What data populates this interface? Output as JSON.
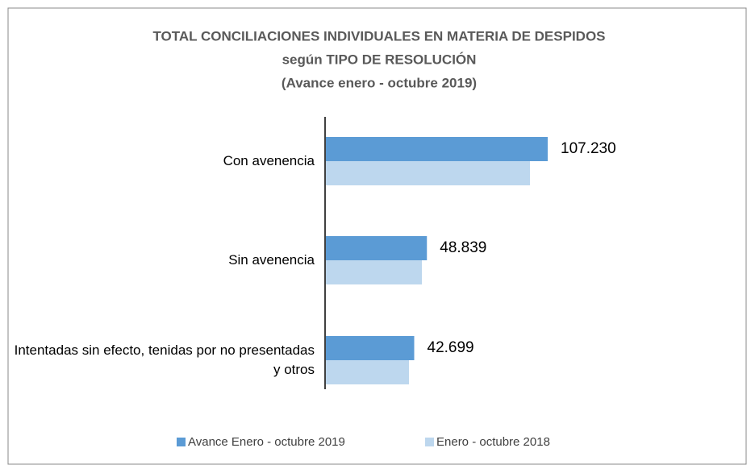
{
  "chart_data": {
    "type": "bar",
    "orientation": "horizontal",
    "title": "TOTAL CONCILIACIONES INDIVIDUALES EN MATERIA DE DESPIDOS",
    "subtitle": "según TIPO DE RESOLUCIÓN",
    "annotation": "(Avance enero - octubre 2019)",
    "categories": [
      "Con avenencia",
      "Sin avenencia",
      "Intentadas sin efecto, tenidas por no presentadas y otros"
    ],
    "series": [
      {
        "name": "Avance Enero - octubre 2019",
        "color": "#5b9bd5",
        "values": [
          107230,
          48839,
          42699
        ],
        "value_labels": [
          "107.230",
          "48.839",
          "42.699"
        ]
      },
      {
        "name": "Enero -  octubre 2018",
        "color": "#bdd7ee",
        "values": [
          98650,
          46400,
          40160
        ]
      }
    ],
    "legend": "bottom"
  }
}
